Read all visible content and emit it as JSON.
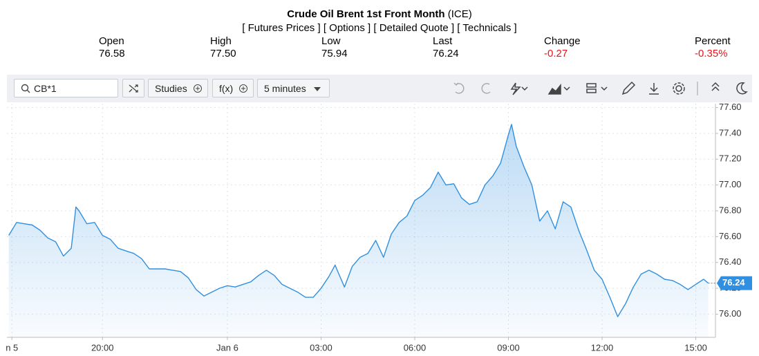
{
  "header": {
    "title": "Crude Oil Brent 1st Front Month",
    "exchange": "(ICE)",
    "links": [
      "[ Futures Prices ]",
      "[ Options ]",
      "[ Detailed Quote ]",
      "[ Technicals ]"
    ],
    "stats": [
      {
        "label": "Open",
        "value": "76.58"
      },
      {
        "label": "High",
        "value": "77.50"
      },
      {
        "label": "Low",
        "value": "75.94"
      },
      {
        "label": "Last",
        "value": "76.24"
      },
      {
        "label": "Change",
        "value": "-0.27"
      },
      {
        "label": "Percent",
        "value": "-0.35%"
      }
    ]
  },
  "toolbar": {
    "symbol": "CB*1",
    "studies": "Studies",
    "functions": "f(x)",
    "interval": "5 minutes"
  },
  "chart_data": {
    "type": "line",
    "color": "#2f8fe0",
    "grid": true,
    "x": [
      -7,
      -6.75,
      -6.5,
      -6.25,
      -6,
      -5.75,
      -5.5,
      -5.25,
      -5,
      -4.85,
      -4.75,
      -4.5,
      -4.25,
      -4,
      -3.75,
      -3.5,
      -3.25,
      -3,
      -2.75,
      -2.5,
      -2.25,
      -2,
      -1.75,
      -1.5,
      -1.25,
      -1,
      -0.75,
      -0.5,
      -0.25,
      0,
      0.25,
      0.5,
      0.75,
      1,
      1.25,
      1.5,
      1.75,
      2,
      2.25,
      2.5,
      2.75,
      3,
      3.25,
      3.45,
      3.5,
      3.75,
      4,
      4.25,
      4.5,
      4.75,
      5,
      5.25,
      5.5,
      5.75,
      6,
      6.25,
      6.5,
      6.75,
      7,
      7.25,
      7.5,
      7.75,
      8,
      8.25,
      8.5,
      8.75,
      9,
      9.1,
      9.25,
      9.5,
      9.75,
      10,
      10.25,
      10.5,
      10.75,
      11,
      11.25,
      11.5,
      11.75,
      12,
      12.25,
      12.5,
      12.75,
      13,
      13.25,
      13.5,
      13.75,
      14,
      14.25,
      14.5,
      14.75,
      15,
      15.25,
      15.4
    ],
    "values": [
      76.61,
      76.71,
      76.7,
      76.69,
      76.65,
      76.59,
      76.56,
      76.45,
      76.51,
      76.83,
      76.8,
      76.7,
      76.71,
      76.61,
      76.58,
      76.51,
      76.49,
      76.47,
      76.43,
      76.35,
      76.35,
      76.35,
      76.34,
      76.33,
      76.28,
      76.19,
      76.14,
      76.17,
      76.2,
      76.22,
      76.21,
      76.23,
      76.25,
      76.3,
      76.34,
      76.3,
      76.23,
      76.2,
      76.17,
      76.13,
      76.13,
      76.2,
      76.29,
      76.38,
      76.35,
      76.21,
      76.37,
      76.44,
      76.47,
      76.57,
      76.44,
      76.62,
      76.71,
      76.76,
      76.88,
      76.92,
      76.98,
      77.1,
      77.0,
      77.01,
      76.9,
      76.85,
      76.87,
      77.0,
      77.07,
      77.17,
      77.39,
      77.47,
      77.3,
      77.14,
      77.0,
      76.72,
      76.8,
      76.66,
      76.87,
      76.83,
      76.65,
      76.5,
      76.34,
      76.27,
      76.13,
      75.98,
      76.08,
      76.21,
      76.31,
      76.34,
      76.31,
      76.27,
      76.26,
      76.23,
      76.19,
      76.23,
      76.27,
      76.24
    ],
    "xlim": [
      -7.06,
      15.63
    ],
    "xticks": [
      {
        "value": -6.9,
        "label": "n 5"
      },
      {
        "value": -4,
        "label": "20:00"
      },
      {
        "value": 0,
        "label": "Jan 6"
      },
      {
        "value": 3,
        "label": "03:00"
      },
      {
        "value": 6,
        "label": "06:00"
      },
      {
        "value": 9,
        "label": "09:00"
      },
      {
        "value": 12,
        "label": "12:00"
      },
      {
        "value": 15,
        "label": "15:00"
      }
    ],
    "ylim": [
      75.82,
      77.63
    ],
    "yticks": [
      {
        "value": 76,
        "label": "76.00"
      },
      {
        "value": 76.2,
        "label": "76.20"
      },
      {
        "value": 76.4,
        "label": "76.40"
      },
      {
        "value": 76.6,
        "label": "76.60"
      },
      {
        "value": 76.8,
        "label": "76.80"
      },
      {
        "value": 77,
        "label": "77.00"
      },
      {
        "value": 77.2,
        "label": "77.20"
      },
      {
        "value": 77.4,
        "label": "77.40"
      },
      {
        "value": 77.6,
        "label": "77.60"
      }
    ]
  }
}
